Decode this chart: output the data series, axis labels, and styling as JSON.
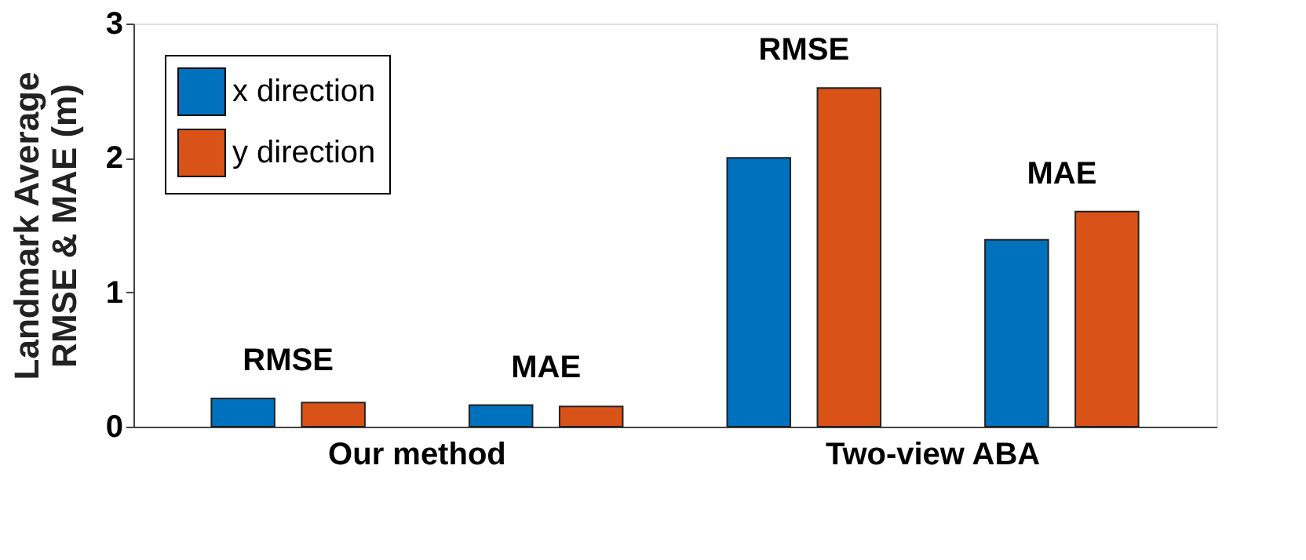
{
  "chart_data": {
    "type": "bar",
    "categories": [
      null,
      null,
      null,
      null
    ],
    "series": [
      {
        "name": "x direction",
        "color": "#0072bd",
        "values": [
          0.21,
          0.16,
          2.0,
          1.39
        ]
      },
      {
        "name": "y direction",
        "color": "#d95319",
        "values": [
          0.18,
          0.15,
          2.52,
          1.6
        ]
      }
    ],
    "ylabel": "Landmark Average\nRMSE & MAE (m)",
    "ylim": [
      0,
      3
    ],
    "yticks": [
      0,
      1,
      2,
      3
    ],
    "annotations": [
      "RMSE",
      "MAE",
      "RMSE",
      "MAE",
      "Our method",
      "Two-view ABA"
    ],
    "tick_labels": "y",
    "grid": false,
    "legend": "top left"
  }
}
